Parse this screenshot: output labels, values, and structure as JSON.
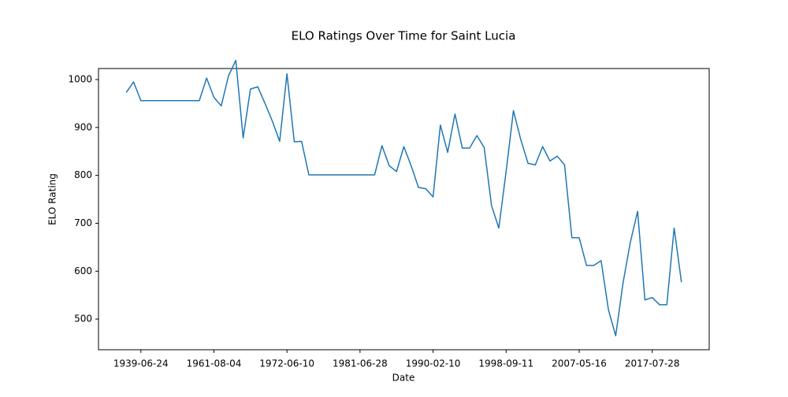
{
  "chart_data": {
    "type": "line",
    "title": "ELO Ratings Over Time for Saint Lucia",
    "x_label": "Date",
    "y_label": "ELO Rating",
    "categories": [
      null,
      null,
      "1939-06-24",
      null,
      null,
      null,
      null,
      null,
      null,
      null,
      null,
      null,
      "1961-08-04",
      null,
      null,
      null,
      null,
      null,
      null,
      null,
      null,
      null,
      "1972-06-10",
      null,
      null,
      null,
      null,
      null,
      null,
      null,
      null,
      null,
      "1981-06-28",
      null,
      null,
      null,
      null,
      null,
      null,
      null,
      null,
      null,
      "1990-02-10",
      null,
      null,
      null,
      null,
      null,
      null,
      null,
      null,
      null,
      "1998-09-11",
      null,
      null,
      null,
      null,
      null,
      null,
      null,
      null,
      null,
      "2007-05-16",
      null,
      null,
      null,
      null,
      null,
      null,
      null,
      null,
      null,
      "2017-07-28",
      null,
      null,
      null,
      null
    ],
    "series": [
      {
        "name": "Saint Lucia",
        "color": "#1f77b4",
        "values": [
          973,
          995,
          956,
          956,
          956,
          956,
          956,
          956,
          956,
          956,
          956,
          1003,
          963,
          945,
          1008,
          1040,
          878,
          980,
          985,
          950,
          913,
          871,
          1012,
          870,
          871,
          801,
          801,
          801,
          801,
          801,
          801,
          801,
          801,
          801,
          801,
          862,
          820,
          808,
          860,
          820,
          775,
          772,
          755,
          905,
          848,
          928,
          857,
          857,
          883,
          858,
          737,
          690,
          808,
          935,
          875,
          825,
          822,
          860,
          830,
          840,
          822,
          670,
          670,
          612,
          612,
          622,
          520,
          465,
          575,
          660,
          725,
          540,
          545,
          530,
          530,
          690,
          577
        ]
      }
    ],
    "ylim": [
      436,
      1023
    ],
    "yticks": [
      500,
      600,
      700,
      800,
      900,
      1000
    ]
  }
}
